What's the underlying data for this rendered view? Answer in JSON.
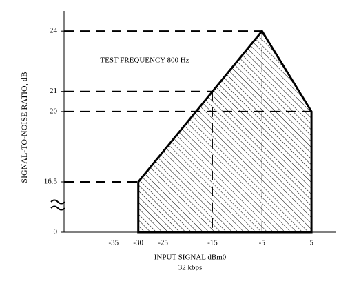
{
  "chart_data": {
    "type": "area",
    "annotation": "TEST FREQUENCY 800 Hz",
    "ylabel": "SIGNAL-TO-NOISE RATIO, dB",
    "xlabel": "INPUT SIGNAL  dBm0",
    "xlabel2": "32 kbps",
    "axis_break": [
      0,
      16.5
    ],
    "xlim": [
      -45,
      10
    ],
    "xticks": [
      -35,
      -30,
      -25,
      -15,
      -5,
      5
    ],
    "ylim": [
      0,
      25
    ],
    "yticks": [
      0,
      16.5,
      20,
      21,
      24
    ],
    "color": "#000000",
    "hatch": true,
    "series": [
      {
        "x": [
          -30,
          -30,
          -5,
          5,
          5
        ],
        "values": [
          0,
          16.5,
          24,
          20,
          0
        ]
      }
    ],
    "reference_lines": [
      {
        "x": -30,
        "y": 16.5
      },
      {
        "x": -15,
        "y": 21
      },
      {
        "x": -5,
        "y": 24
      },
      {
        "x": 5,
        "y": 20
      }
    ]
  }
}
